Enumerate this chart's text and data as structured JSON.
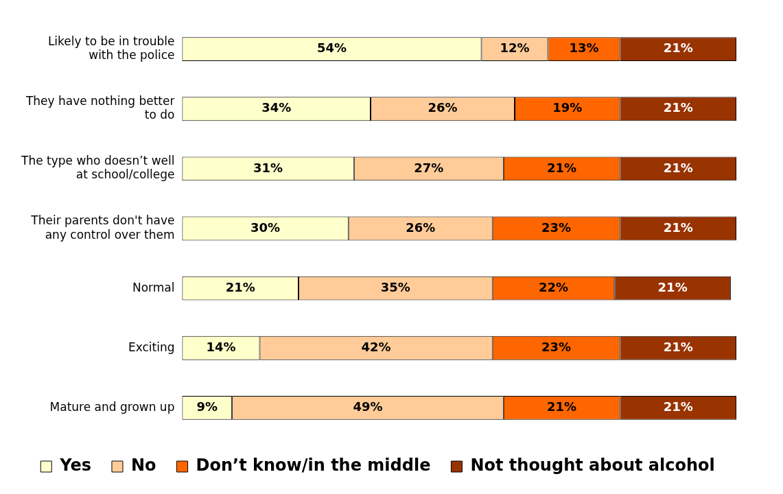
{
  "chart_data": {
    "type": "bar",
    "orientation": "horizontal",
    "stacked": true,
    "legend": "bottom",
    "tick_labels": "y",
    "categories": [
      "Likely to be in trouble with the police",
      "They have nothing better to do",
      "The type who doesn’t well at school/college",
      "Their parents don't have any control over them",
      "Normal",
      "Exciting",
      "Mature and grown up"
    ],
    "series": [
      {
        "name": "Yes",
        "color": "#ffffcc",
        "values": [
          54,
          34,
          31,
          30,
          21,
          14,
          9
        ],
        "value_labels": [
          "54%",
          "34%",
          "31%",
          "30%",
          "21%",
          "14%",
          "9%"
        ]
      },
      {
        "name": "No",
        "color": "#ffcc99",
        "values": [
          12,
          26,
          27,
          26,
          35,
          42,
          49
        ],
        "value_labels": [
          "12%",
          "26%",
          "27%",
          "26%",
          "35%",
          "42%",
          "49%"
        ]
      },
      {
        "name": "Don’t know/in the middle",
        "color": "#ff6600",
        "values": [
          13,
          19,
          21,
          23,
          22,
          23,
          21
        ],
        "value_labels": [
          "13%",
          "19%",
          "21%",
          "23%",
          "22%",
          "23%",
          "21%"
        ]
      },
      {
        "name": "Not thought about alcohol",
        "color": "#993300",
        "values": [
          21,
          21,
          21,
          21,
          21,
          21,
          21
        ],
        "value_labels": [
          "21%",
          "21%",
          "21%",
          "21%",
          "21%",
          "21%",
          "21%"
        ]
      }
    ]
  }
}
